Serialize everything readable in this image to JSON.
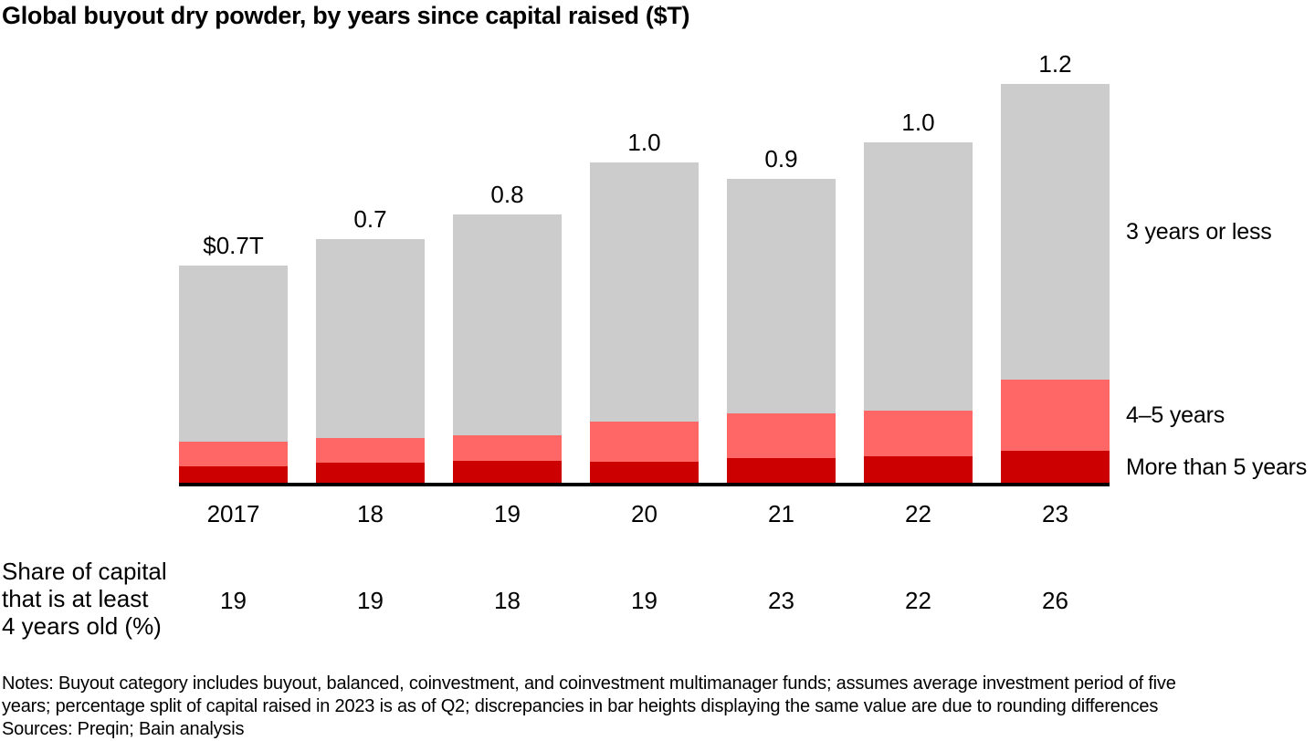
{
  "title": "Global buyout dry powder, by years since capital raised ($T)",
  "chart_data": {
    "type": "bar",
    "stacked": true,
    "unit": "$T",
    "grid": false,
    "legend_position": "right",
    "categories": [
      "2017",
      "18",
      "19",
      "20",
      "21",
      "22",
      "23"
    ],
    "series": [
      {
        "name": "More than 5 years",
        "color": "#cc0000",
        "values": [
          0.049,
          0.06,
          0.066,
          0.063,
          0.074,
          0.08,
          0.096
        ]
      },
      {
        "name": "4–5 years",
        "color": "#ff6666",
        "values": [
          0.074,
          0.074,
          0.077,
          0.121,
          0.135,
          0.137,
          0.214
        ]
      },
      {
        "name": "3 years or less",
        "color": "#cccccc",
        "values": [
          0.53,
          0.599,
          0.665,
          0.78,
          0.706,
          0.808,
          0.89
        ]
      }
    ],
    "totals": [
      0.7,
      0.7,
      0.8,
      1.0,
      0.9,
      1.0,
      1.2
    ],
    "total_labels": [
      "$0.7T",
      "0.7",
      "0.8",
      "1.0",
      "0.9",
      "1.0",
      "1.2"
    ],
    "ylim": [
      0,
      1.25
    ]
  },
  "share_row": {
    "label_lines": [
      "Share of capital",
      "that is at least",
      "4 years old (%)"
    ],
    "values": [
      "19",
      "19",
      "18",
      "19",
      "23",
      "22",
      "26"
    ]
  },
  "footer": {
    "notes_lines": [
      "Notes: Buyout category includes buyout, balanced, coinvestment, and coinvestment multimanager funds; assumes average investment period of five",
      "years; percentage split of capital raised in 2023 is as of Q2; discrepancies in bar heights displaying the same value are due to rounding differences"
    ],
    "sources": "Sources: Preqin; Bain analysis"
  }
}
